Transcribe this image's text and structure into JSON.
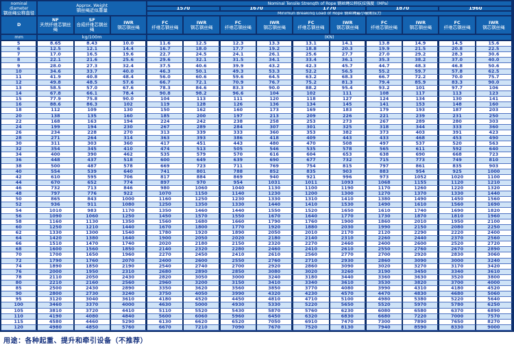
{
  "header": {
    "nominal_en": "nominal diameter",
    "nominal_zh": "钢丝绳公称直径",
    "d_label": "D",
    "mm_label": "mm",
    "weight_en": "Approx. Weight",
    "weight_zh": "钢丝绳近似重量",
    "weight_unit": "kg/100m",
    "tensile_title": "Nominal Tensile Strength of Rope 钢丝绳公称抗拉强度（MPa）",
    "breaking_title": "Minimun Breaking Load of Rope 钢丝绳最小破断拉力",
    "kn_label": "(KN)",
    "strengths": [
      "1570",
      "1670",
      "1770",
      "1870",
      "1960"
    ],
    "nf": {
      "code": "NF",
      "zh": "天然纤维芯钢丝绳"
    },
    "sf": {
      "code": "SF",
      "zh": "合成纤维芯钢丝绳"
    },
    "iwr_weight": {
      "code": "IWR",
      "zh": "钢芯钢丝绳"
    },
    "fc": {
      "code": "FC",
      "zh": "纤维芯钢丝绳"
    },
    "iwr": {
      "code": "IWR",
      "zh": "钢芯钢丝绳"
    }
  },
  "footer": {
    "usage": "用途：各种起重、提升和牵引设备（不推荐）"
  },
  "colors": {
    "header_bg": "#1463b0",
    "border_navy": "#0c2e6b",
    "row_alt": "#cfe3f7",
    "data_text": "#1c3ea8"
  },
  "table": {
    "column_keys": [
      "D_mm",
      "NF_kg100m",
      "SF_kg100m",
      "IWR_kg100m",
      "1570_FC_kN",
      "1570_IWR_kN",
      "1670_FC_kN",
      "1670_IWR_kN",
      "1770_FC_kN",
      "1770_IWR_kN",
      "1870_FC_kN",
      "1870_IWR_kN",
      "1960_FC_kN",
      "1960_IWR_kN"
    ],
    "rows": [
      [
        "5",
        "8.65",
        "8.43",
        "10.0",
        "11.6",
        "12.5",
        "12.3",
        "13.3",
        "13.1",
        "14.1",
        "13.8",
        "14.9",
        "14.5",
        "15.6"
      ],
      [
        "6",
        "12.5",
        "12.1",
        "14.4",
        "16.7",
        "18.0",
        "17.7",
        "19.2",
        "18.8",
        "20.3",
        "19.9",
        "21.5",
        "20.8",
        "22.5"
      ],
      [
        "7",
        "17.0",
        "16.5",
        "19.6",
        "22.7",
        "24.5",
        "24.1",
        "26.1",
        "25.6",
        "27.7",
        "27.0",
        "29.2",
        "28.3",
        "30.6"
      ],
      [
        "8",
        "22.1",
        "21.6",
        "25.6",
        "29.6",
        "32.1",
        "31.5",
        "34.1",
        "33.4",
        "36.1",
        "35.3",
        "38.2",
        "37.0",
        "40.0"
      ],
      [
        "9",
        "28.0",
        "27.3",
        "32.4",
        "37.5",
        "40.6",
        "39.9",
        "43.2",
        "42.3",
        "45.7",
        "44.7",
        "48.3",
        "46.8",
        "50.6"
      ],
      [
        "10",
        "34.6",
        "33.7",
        "40.0",
        "46.3",
        "50.1",
        "49.3",
        "53.3",
        "52.2",
        "56.5",
        "55.2",
        "59.7",
        "57.8",
        "62.5"
      ],
      [
        "11",
        "41.9",
        "40.8",
        "48.4",
        "56.0",
        "60.6",
        "59.6",
        "64.5",
        "63.2",
        "68.3",
        "66.7",
        "72.2",
        "70.0",
        "75.7"
      ],
      [
        "12",
        "49.8",
        "48.5",
        "57.6",
        "66.7",
        "72.1",
        "70.9",
        "76.7",
        "75.2",
        "81.3",
        "79.4",
        "85.9",
        "83.3",
        "90.0"
      ],
      [
        "13",
        "58.5",
        "57.0",
        "67.6",
        "78.3",
        "84.6",
        "83.3",
        "90.0",
        "88.2",
        "95.4",
        "93.2",
        "101",
        "97.7",
        "106"
      ],
      [
        "14",
        "67.8",
        "66.1",
        "78.4",
        "90.8",
        "98.2",
        "96.6",
        "104",
        "102",
        "111",
        "108",
        "117",
        "113",
        "123"
      ],
      [
        "15",
        "77.9",
        "75.8",
        "90.0",
        "104",
        "113",
        "111",
        "120",
        "118",
        "127",
        "124",
        "134",
        "130",
        "141"
      ],
      [
        "16",
        "88.6",
        "86.3",
        "102",
        "119",
        "128",
        "126",
        "136",
        "134",
        "145",
        "141",
        "153",
        "148",
        "160"
      ],
      [
        "18",
        "112",
        "109",
        "130",
        "150",
        "162",
        "160",
        "173",
        "169",
        "183",
        "179",
        "193",
        "187",
        "203"
      ],
      [
        "20",
        "138",
        "135",
        "160",
        "185",
        "200",
        "197",
        "213",
        "209",
        "226",
        "221",
        "239",
        "231",
        "250"
      ],
      [
        "22",
        "168",
        "163",
        "194",
        "224",
        "242",
        "238",
        "258",
        "253",
        "273",
        "267",
        "289",
        "280",
        "303"
      ],
      [
        "24",
        "199",
        "194",
        "230",
        "267",
        "289",
        "284",
        "307",
        "301",
        "325",
        "318",
        "344",
        "333",
        "360"
      ],
      [
        "26",
        "234",
        "228",
        "270",
        "313",
        "339",
        "333",
        "360",
        "353",
        "382",
        "373",
        "403",
        "391",
        "423"
      ],
      [
        "28",
        "271",
        "264",
        "314",
        "363",
        "393",
        "386",
        "418",
        "409",
        "443",
        "433",
        "468",
        "453",
        "490"
      ],
      [
        "30",
        "311",
        "303",
        "360",
        "417",
        "451",
        "443",
        "480",
        "470",
        "508",
        "497",
        "537",
        "520",
        "563"
      ],
      [
        "32",
        "354",
        "345",
        "410",
        "474",
        "513",
        "505",
        "546",
        "535",
        "578",
        "565",
        "611",
        "592",
        "640"
      ],
      [
        "34",
        "400",
        "390",
        "462",
        "535",
        "579",
        "570",
        "616",
        "604",
        "653",
        "638",
        "690",
        "668",
        "723"
      ],
      [
        "36",
        "448",
        "437",
        "518",
        "600",
        "649",
        "639",
        "690",
        "677",
        "732",
        "715",
        "773",
        "749",
        "810"
      ],
      [
        "38",
        "500",
        "487",
        "578",
        "669",
        "723",
        "711",
        "769",
        "754",
        "815",
        "797",
        "861",
        "835",
        "903"
      ],
      [
        "40",
        "554",
        "539",
        "640",
        "741",
        "801",
        "788",
        "852",
        "835",
        "903",
        "883",
        "954",
        "925",
        "1000"
      ],
      [
        "42",
        "610",
        "595",
        "706",
        "817",
        "884",
        "869",
        "940",
        "921",
        "996",
        "973",
        "1052",
        "1020",
        "1100"
      ],
      [
        "44",
        "670",
        "652",
        "774",
        "897",
        "970",
        "954",
        "1031",
        "1011",
        "1093",
        "1068",
        "1155",
        "1120",
        "1210"
      ],
      [
        "46",
        "732",
        "713",
        "846",
        "980",
        "1060",
        "1040",
        "1130",
        "1100",
        "1190",
        "1170",
        "1260",
        "1220",
        "1320"
      ],
      [
        "48",
        "797",
        "776",
        "922",
        "1070",
        "1150",
        "1140",
        "1230",
        "1200",
        "1300",
        "1270",
        "1370",
        "1330",
        "1440"
      ],
      [
        "50",
        "865",
        "843",
        "1000",
        "1160",
        "1250",
        "1230",
        "1330",
        "1310",
        "1410",
        "1380",
        "1490",
        "1450",
        "1560"
      ],
      [
        "52",
        "936",
        "911",
        "1080",
        "1250",
        "1350",
        "1330",
        "1440",
        "1410",
        "1530",
        "1490",
        "1610",
        "1560",
        "1690"
      ],
      [
        "54",
        "1010",
        "983",
        "1170",
        "1350",
        "1460",
        "1440",
        "1550",
        "1520",
        "1650",
        "1610",
        "1740",
        "1690",
        "1820"
      ],
      [
        "56",
        "1090",
        "1060",
        "1250",
        "1450",
        "1570",
        "1550",
        "1670",
        "1640",
        "1770",
        "1730",
        "1870",
        "1810",
        "1960"
      ],
      [
        "58",
        "1160",
        "1130",
        "1350",
        "1560",
        "1680",
        "1660",
        "1790",
        "1760",
        "1900",
        "1860",
        "2010",
        "1950",
        "2100"
      ],
      [
        "60",
        "1250",
        "1210",
        "1440",
        "1670",
        "1800",
        "1770",
        "1920",
        "1880",
        "2030",
        "1990",
        "2150",
        "2080",
        "2250"
      ],
      [
        "62",
        "1330",
        "1300",
        "1540",
        "1780",
        "1920",
        "1890",
        "2050",
        "2010",
        "2170",
        "2120",
        "2290",
        "2220",
        "2400"
      ],
      [
        "64",
        "1420",
        "1380",
        "1640",
        "1900",
        "2050",
        "2020",
        "2180",
        "2140",
        "2310",
        "2260",
        "2440",
        "2370",
        "2560"
      ],
      [
        "66",
        "1510",
        "1470",
        "1740",
        "2020",
        "2180",
        "2150",
        "2320",
        "2270",
        "2460",
        "2400",
        "2600",
        "2520",
        "2720"
      ],
      [
        "68",
        "1600",
        "1560",
        "1850",
        "2140",
        "2320",
        "2280",
        "2460",
        "2410",
        "2610",
        "2550",
        "2760",
        "2670",
        "2890"
      ],
      [
        "70",
        "1700",
        "1650",
        "1960",
        "2270",
        "2450",
        "2410",
        "2610",
        "2560",
        "2770",
        "2700",
        "2920",
        "2830",
        "3060"
      ],
      [
        "72",
        "1790",
        "1760",
        "2070",
        "2400",
        "2600",
        "2550",
        "2760",
        "2710",
        "2930",
        "2860",
        "3090",
        "3000",
        "3240"
      ],
      [
        "74",
        "1890",
        "1850",
        "2190",
        "2540",
        "2740",
        "2700",
        "2920",
        "2860",
        "3090",
        "3020",
        "3270",
        "3170",
        "3420"
      ],
      [
        "76",
        "2000",
        "1950",
        "2310",
        "2680",
        "2890",
        "2850",
        "3080",
        "3020",
        "3260",
        "3190",
        "3450",
        "3340",
        "3610"
      ],
      [
        "78",
        "2110",
        "2050",
        "2430",
        "2820",
        "3050",
        "3000",
        "3240",
        "3180",
        "3440",
        "3360",
        "3630",
        "3520",
        "3800"
      ],
      [
        "80",
        "2210",
        "2160",
        "2560",
        "2960",
        "3200",
        "3150",
        "3410",
        "3340",
        "3610",
        "3530",
        "3820",
        "3700",
        "4000"
      ],
      [
        "85",
        "2500",
        "2430",
        "2890",
        "3350",
        "3620",
        "3560",
        "3850",
        "3770",
        "4080",
        "3990",
        "4310",
        "4180",
        "4520"
      ],
      [
        "90",
        "2800",
        "2730",
        "3240",
        "3750",
        "4050",
        "3990",
        "4320",
        "4230",
        "4570",
        "4470",
        "4830",
        "4680",
        "5060"
      ],
      [
        "95",
        "3120",
        "3040",
        "3610",
        "4180",
        "4520",
        "4450",
        "4810",
        "4710",
        "5100",
        "4980",
        "5380",
        "5220",
        "5640"
      ],
      [
        "100",
        "3460",
        "3370",
        "4000",
        "4630",
        "5000",
        "4930",
        "5330",
        "5220",
        "5650",
        "5520",
        "5970",
        "5780",
        "6250"
      ],
      [
        "105",
        "3810",
        "3720",
        "4410",
        "5110",
        "5520",
        "5430",
        "5870",
        "5760",
        "6230",
        "6080",
        "6580",
        "6370",
        "6890"
      ],
      [
        "110",
        "4190",
        "4080",
        "4840",
        "5600",
        "6060",
        "5960",
        "6450",
        "6320",
        "6830",
        "6680",
        "7220",
        "7000",
        "7570"
      ],
      [
        "115",
        "4580",
        "4460",
        "5290",
        "6130",
        "6620",
        "6520",
        "7050",
        "6910",
        "7470",
        "7300",
        "7890",
        "7650",
        "8270"
      ],
      [
        "120",
        "4980",
        "4850",
        "5760",
        "6670",
        "7210",
        "7090",
        "7670",
        "7520",
        "8130",
        "7940",
        "8590",
        "8330",
        "9000"
      ]
    ]
  }
}
